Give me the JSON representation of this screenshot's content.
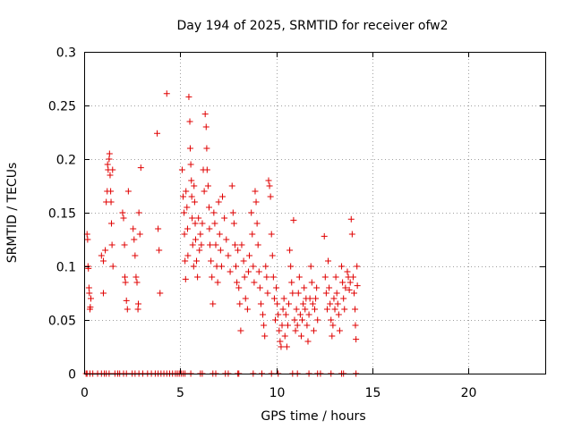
{
  "chart_data": {
    "type": "scatter",
    "title": "Day 194 of 2025, SRMTID for receiver ofw2",
    "xlabel": "GPS time / hours",
    "ylabel": "SRMTID / TECUs",
    "xlim": [
      0,
      24
    ],
    "ylim": [
      0,
      0.3
    ],
    "grid": true,
    "marker": "+",
    "color": "#e00000",
    "x_ticks": [
      0,
      5,
      10,
      15,
      20
    ],
    "x_tick_labels": [
      "0",
      "5",
      "10",
      "15",
      "20"
    ],
    "y_ticks": [
      0,
      0.05,
      0.1,
      0.15,
      0.2,
      0.25,
      0.3
    ],
    "y_tick_labels": [
      "0",
      "0.05",
      "0.1",
      "0.15",
      "0.2",
      "0.25",
      "0.3"
    ],
    "series": [
      {
        "name": "SRMTID",
        "points": [
          [
            0.15,
            0.13
          ],
          [
            0.18,
            0.125
          ],
          [
            0.2,
            0.1
          ],
          [
            0.22,
            0.098
          ],
          [
            0.25,
            0.08
          ],
          [
            0.27,
            0.075
          ],
          [
            0.3,
            0.06
          ],
          [
            0.32,
            0.062
          ],
          [
            0.35,
            0.07
          ],
          [
            0.9,
            0.11
          ],
          [
            1.0,
            0.105
          ],
          [
            1.0,
            0.075
          ],
          [
            1.1,
            0.115
          ],
          [
            1.15,
            0.16
          ],
          [
            1.2,
            0.17
          ],
          [
            1.22,
            0.195
          ],
          [
            1.25,
            0.19
          ],
          [
            1.3,
            0.2
          ],
          [
            1.32,
            0.205
          ],
          [
            1.35,
            0.185
          ],
          [
            1.38,
            0.17
          ],
          [
            1.4,
            0.16
          ],
          [
            1.42,
            0.14
          ],
          [
            1.45,
            0.12
          ],
          [
            1.48,
            0.19
          ],
          [
            1.5,
            0.1
          ],
          [
            2.0,
            0.15
          ],
          [
            2.05,
            0.145
          ],
          [
            2.1,
            0.12
          ],
          [
            2.12,
            0.09
          ],
          [
            2.15,
            0.085
          ],
          [
            2.2,
            0.068
          ],
          [
            2.25,
            0.06
          ],
          [
            2.3,
            0.17
          ],
          [
            2.55,
            0.135
          ],
          [
            2.6,
            0.125
          ],
          [
            2.65,
            0.11
          ],
          [
            2.7,
            0.09
          ],
          [
            2.75,
            0.085
          ],
          [
            2.8,
            0.06
          ],
          [
            2.82,
            0.065
          ],
          [
            2.85,
            0.15
          ],
          [
            2.9,
            0.13
          ],
          [
            2.95,
            0.192
          ],
          [
            3.8,
            0.224
          ],
          [
            3.85,
            0.135
          ],
          [
            3.9,
            0.115
          ],
          [
            3.95,
            0.075
          ],
          [
            4.3,
            0.261
          ],
          [
            5.1,
            0.19
          ],
          [
            5.15,
            0.165
          ],
          [
            5.2,
            0.15
          ],
          [
            5.22,
            0.13
          ],
          [
            5.25,
            0.105
          ],
          [
            5.28,
            0.088
          ],
          [
            5.3,
            0.17
          ],
          [
            5.35,
            0.155
          ],
          [
            5.38,
            0.135
          ],
          [
            5.4,
            0.11
          ],
          [
            5.45,
            0.258
          ],
          [
            5.5,
            0.235
          ],
          [
            5.52,
            0.21
          ],
          [
            5.55,
            0.195
          ],
          [
            5.58,
            0.18
          ],
          [
            5.6,
            0.165
          ],
          [
            5.62,
            0.145
          ],
          [
            5.65,
            0.12
          ],
          [
            5.7,
            0.1
          ],
          [
            5.72,
            0.175
          ],
          [
            5.75,
            0.16
          ],
          [
            5.78,
            0.14
          ],
          [
            5.8,
            0.125
          ],
          [
            5.85,
            0.105
          ],
          [
            5.9,
            0.09
          ],
          [
            5.95,
            0.145
          ],
          [
            6.0,
            0.115
          ],
          [
            6.05,
            0.13
          ],
          [
            6.1,
            0.12
          ],
          [
            6.15,
            0.14
          ],
          [
            6.2,
            0.19
          ],
          [
            6.25,
            0.17
          ],
          [
            6.3,
            0.242
          ],
          [
            6.35,
            0.23
          ],
          [
            6.38,
            0.21
          ],
          [
            6.4,
            0.19
          ],
          [
            6.45,
            0.175
          ],
          [
            6.5,
            0.155
          ],
          [
            6.52,
            0.135
          ],
          [
            6.55,
            0.12
          ],
          [
            6.6,
            0.105
          ],
          [
            6.65,
            0.09
          ],
          [
            6.7,
            0.065
          ],
          [
            6.75,
            0.15
          ],
          [
            6.8,
            0.14
          ],
          [
            6.85,
            0.12
          ],
          [
            6.9,
            0.1
          ],
          [
            6.95,
            0.085
          ],
          [
            7.0,
            0.16
          ],
          [
            7.05,
            0.13
          ],
          [
            7.1,
            0.115
          ],
          [
            7.15,
            0.1
          ],
          [
            7.2,
            0.165
          ],
          [
            7.3,
            0.145
          ],
          [
            7.4,
            0.125
          ],
          [
            7.5,
            0.11
          ],
          [
            7.6,
            0.095
          ],
          [
            7.7,
            0.175
          ],
          [
            7.75,
            0.15
          ],
          [
            7.8,
            0.14
          ],
          [
            7.85,
            0.12
          ],
          [
            7.9,
            0.1
          ],
          [
            7.95,
            0.085
          ],
          [
            8.0,
            0.115
          ],
          [
            8.05,
            0.08
          ],
          [
            8.1,
            0.065
          ],
          [
            8.15,
            0.04
          ],
          [
            8.2,
            0.12
          ],
          [
            8.3,
            0.105
          ],
          [
            8.35,
            0.09
          ],
          [
            8.4,
            0.07
          ],
          [
            8.5,
            0.06
          ],
          [
            8.55,
            0.095
          ],
          [
            8.6,
            0.11
          ],
          [
            8.7,
            0.15
          ],
          [
            8.75,
            0.13
          ],
          [
            8.8,
            0.1
          ],
          [
            8.85,
            0.085
          ],
          [
            8.9,
            0.17
          ],
          [
            8.95,
            0.16
          ],
          [
            9.0,
            0.14
          ],
          [
            9.05,
            0.12
          ],
          [
            9.1,
            0.095
          ],
          [
            9.15,
            0.08
          ],
          [
            9.2,
            0.065
          ],
          [
            9.3,
            0.055
          ],
          [
            9.35,
            0.045
          ],
          [
            9.4,
            0.035
          ],
          [
            9.45,
            0.1
          ],
          [
            9.5,
            0.09
          ],
          [
            9.55,
            0.075
          ],
          [
            9.6,
            0.18
          ],
          [
            9.65,
            0.175
          ],
          [
            9.7,
            0.165
          ],
          [
            9.75,
            0.13
          ],
          [
            9.8,
            0.11
          ],
          [
            9.85,
            0.09
          ],
          [
            9.9,
            0.07
          ],
          [
            9.95,
            0.05
          ],
          [
            10.0,
            0.08
          ],
          [
            10.05,
            0.065
          ],
          [
            10.1,
            0.055
          ],
          [
            10.15,
            0.04
          ],
          [
            10.2,
            0.03
          ],
          [
            10.25,
            0.025
          ],
          [
            10.3,
            0.045
          ],
          [
            10.35,
            0.06
          ],
          [
            10.4,
            0.07
          ],
          [
            10.45,
            0.035
          ],
          [
            10.5,
            0.055
          ],
          [
            10.55,
            0.025
          ],
          [
            10.6,
            0.045
          ],
          [
            10.65,
            0.065
          ],
          [
            10.7,
            0.115
          ],
          [
            10.75,
            0.1
          ],
          [
            10.8,
            0.085
          ],
          [
            10.85,
            0.075
          ],
          [
            10.9,
            0.143
          ],
          [
            10.95,
            0.05
          ],
          [
            11.0,
            0.04
          ],
          [
            11.05,
            0.06
          ],
          [
            11.1,
            0.045
          ],
          [
            11.15,
            0.075
          ],
          [
            11.2,
            0.09
          ],
          [
            11.25,
            0.055
          ],
          [
            11.3,
            0.035
          ],
          [
            11.35,
            0.05
          ],
          [
            11.4,
            0.065
          ],
          [
            11.45,
            0.08
          ],
          [
            11.5,
            0.06
          ],
          [
            11.55,
            0.07
          ],
          [
            11.6,
            0.045
          ],
          [
            11.65,
            0.03
          ],
          [
            11.7,
            0.055
          ],
          [
            11.75,
            0.07
          ],
          [
            11.8,
            0.1
          ],
          [
            11.85,
            0.085
          ],
          [
            11.9,
            0.065
          ],
          [
            11.95,
            0.04
          ],
          [
            12.0,
            0.06
          ],
          [
            12.05,
            0.07
          ],
          [
            12.1,
            0.08
          ],
          [
            12.15,
            0.05
          ],
          [
            12.5,
            0.128
          ],
          [
            12.55,
            0.09
          ],
          [
            12.6,
            0.075
          ],
          [
            12.65,
            0.06
          ],
          [
            12.7,
            0.105
          ],
          [
            12.75,
            0.08
          ],
          [
            12.8,
            0.065
          ],
          [
            12.85,
            0.05
          ],
          [
            12.9,
            0.035
          ],
          [
            12.95,
            0.045
          ],
          [
            13.0,
            0.07
          ],
          [
            13.05,
            0.06
          ],
          [
            13.1,
            0.09
          ],
          [
            13.15,
            0.075
          ],
          [
            13.2,
            0.065
          ],
          [
            13.25,
            0.055
          ],
          [
            13.3,
            0.04
          ],
          [
            13.4,
            0.1
          ],
          [
            13.45,
            0.085
          ],
          [
            13.5,
            0.07
          ],
          [
            13.55,
            0.06
          ],
          [
            13.6,
            0.08
          ],
          [
            13.7,
            0.095
          ],
          [
            13.75,
            0.09
          ],
          [
            13.8,
            0.078
          ],
          [
            13.85,
            0.085
          ],
          [
            13.9,
            0.144
          ],
          [
            13.95,
            0.13
          ],
          [
            14.0,
            0.09
          ],
          [
            14.05,
            0.075
          ],
          [
            14.1,
            0.06
          ],
          [
            14.12,
            0.045
          ],
          [
            14.15,
            0.032
          ],
          [
            14.2,
            0.1
          ],
          [
            14.22,
            0.082
          ],
          [
            0.1,
            0
          ],
          [
            0.15,
            0
          ],
          [
            0.3,
            0
          ],
          [
            0.45,
            0
          ],
          [
            0.7,
            0
          ],
          [
            0.9,
            0
          ],
          [
            1.05,
            0
          ],
          [
            1.15,
            0
          ],
          [
            1.3,
            0
          ],
          [
            1.6,
            0
          ],
          [
            1.75,
            0
          ],
          [
            1.85,
            0
          ],
          [
            2.05,
            0
          ],
          [
            2.2,
            0
          ],
          [
            2.5,
            0
          ],
          [
            2.65,
            0
          ],
          [
            2.85,
            0
          ],
          [
            3.05,
            0
          ],
          [
            3.3,
            0
          ],
          [
            3.5,
            0
          ],
          [
            3.7,
            0
          ],
          [
            3.85,
            0
          ],
          [
            4.0,
            0
          ],
          [
            4.15,
            0
          ],
          [
            4.3,
            0
          ],
          [
            4.45,
            0
          ],
          [
            4.6,
            0
          ],
          [
            4.75,
            0
          ],
          [
            4.85,
            0
          ],
          [
            4.95,
            0
          ],
          [
            5.05,
            0
          ],
          [
            5.15,
            0
          ],
          [
            5.25,
            0
          ],
          [
            5.55,
            0
          ],
          [
            6.05,
            0
          ],
          [
            6.15,
            0
          ],
          [
            6.7,
            0
          ],
          [
            6.85,
            0
          ],
          [
            7.35,
            0
          ],
          [
            7.5,
            0
          ],
          [
            8.0,
            0
          ],
          [
            8.05,
            0
          ],
          [
            8.8,
            0
          ],
          [
            9.25,
            0
          ],
          [
            9.75,
            0
          ],
          [
            10.1,
            0
          ],
          [
            10.85,
            0
          ],
          [
            11.1,
            0
          ],
          [
            11.7,
            0
          ],
          [
            12.15,
            0
          ],
          [
            12.3,
            0
          ],
          [
            12.85,
            0
          ],
          [
            13.4,
            0
          ],
          [
            13.5,
            0
          ],
          [
            14.15,
            0
          ]
        ]
      }
    ]
  }
}
